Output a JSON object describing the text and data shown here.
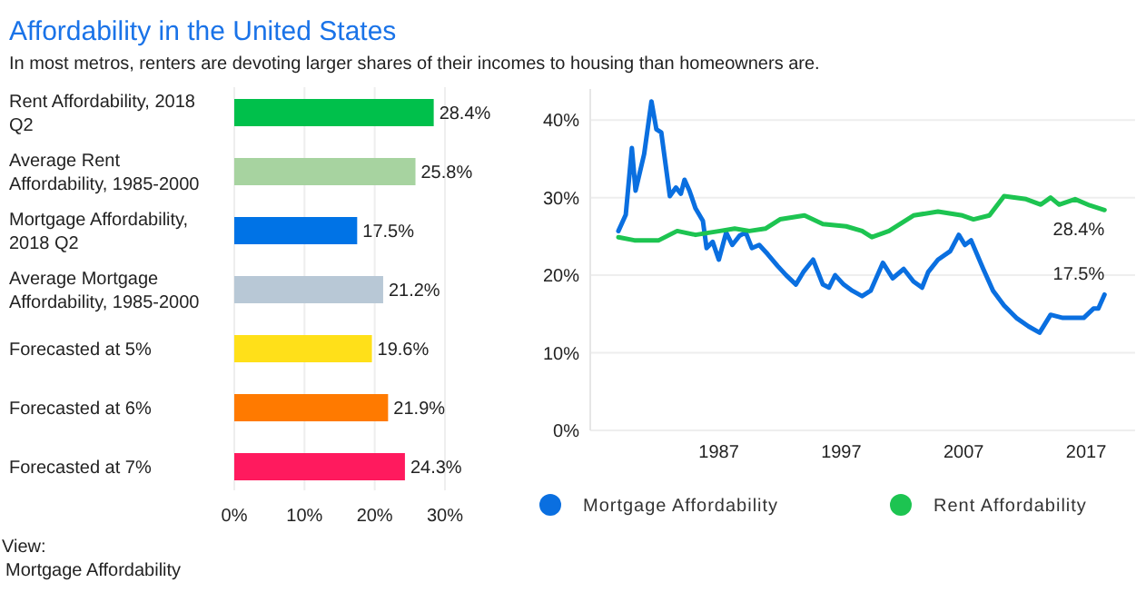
{
  "chart_data": [
    {
      "type": "bar",
      "title": "Affordability in the United States",
      "subtitle": "In most metros, renters are devoting larger shares of their incomes to housing than homeowners are.",
      "orientation": "horizontal",
      "categories": [
        "Rent Affordability, 2018 Q2",
        "Average Rent Affordability, 1985-2000",
        "Mortgage Affordability, 2018 Q2",
        "Average Mortgage Affordability, 1985-2000",
        "Forecasted at 5%",
        "Forecasted at 6%",
        "Forecasted at 7%"
      ],
      "values": [
        28.4,
        25.8,
        17.5,
        21.2,
        19.6,
        21.9,
        24.3
      ],
      "colors": [
        "#00c04b",
        "#a7d3a0",
        "#0073e6",
        "#b8c8d6",
        "#ffe019",
        "#ff7a00",
        "#ff1a5e"
      ],
      "value_labels": [
        "28.4%",
        "25.8%",
        "17.5%",
        "21.2%",
        "19.6%",
        "21.9%",
        "24.3%"
      ],
      "xlim": [
        0,
        30
      ],
      "xticks": [
        {
          "value": 0,
          "label": "0%"
        },
        {
          "value": 10,
          "label": "10%"
        },
        {
          "value": 20,
          "label": "20%"
        },
        {
          "value": 30,
          "label": "30%"
        }
      ],
      "grid": "x",
      "annotations": [
        "View:",
        "Mortgage Affordability"
      ]
    },
    {
      "type": "line",
      "legend": "bottom",
      "grid": "y",
      "xlim": [
        1976.5,
        2021
      ],
      "xticks": [
        1987,
        1997,
        2007,
        2017
      ],
      "ylim": [
        0,
        44
      ],
      "yticks": [
        {
          "value": 0,
          "label": "0%"
        },
        {
          "value": 10,
          "label": "10%"
        },
        {
          "value": 20,
          "label": "20%"
        },
        {
          "value": 30,
          "label": "30%"
        },
        {
          "value": 40,
          "label": "40%"
        }
      ],
      "series": [
        {
          "name": "Mortgage Affordability",
          "color": "#0a6fe0",
          "x": [
            1978.8,
            1979.4,
            1979.9,
            1980.2,
            1980.9,
            1981.5,
            1981.9,
            1982.3,
            1983.0,
            1983.5,
            1983.9,
            1984.2,
            1984.6,
            1985.1,
            1985.7,
            1986.0,
            1986.5,
            1987.0,
            1987.6,
            1988.1,
            1988.7,
            1989.2,
            1989.7,
            1990.3,
            1991.0,
            1991.8,
            1992.5,
            1993.3,
            1993.9,
            1994.7,
            1995.5,
            1996.0,
            1996.5,
            1997.2,
            1997.9,
            1998.7,
            1999.4,
            2000.4,
            2001.2,
            2002.1,
            2002.9,
            2003.6,
            2004.1,
            2004.9,
            2005.9,
            2006.6,
            2007.1,
            2007.6,
            2008.6,
            2009.4,
            2010.3,
            2011.3,
            2012.3,
            2013.2,
            2014.1,
            2015.1,
            2016.1,
            2016.8,
            2017.6,
            2018.0,
            2018.5
          ],
          "values": [
            25.7,
            27.8,
            36.4,
            30.9,
            35.6,
            42.4,
            38.8,
            38.4,
            30.2,
            31.3,
            30.5,
            32.3,
            30.9,
            28.6,
            27.0,
            23.5,
            24.3,
            22.0,
            25.5,
            23.9,
            25.1,
            25.5,
            23.5,
            23.9,
            22.7,
            21.2,
            20.0,
            18.8,
            20.4,
            22.0,
            18.8,
            18.4,
            20.0,
            18.8,
            18.0,
            17.3,
            18.0,
            21.6,
            19.6,
            20.8,
            19.2,
            18.4,
            20.4,
            22.0,
            23.1,
            25.2,
            23.9,
            24.5,
            20.8,
            18.0,
            16.1,
            14.5,
            13.4,
            12.6,
            14.9,
            14.5,
            14.5,
            14.5,
            15.7,
            15.7,
            17.5
          ]
        },
        {
          "name": "Rent Affordability",
          "color": "#1dc451",
          "x": [
            1978.8,
            1980.1,
            1982.1,
            1983.6,
            1985.1,
            1987.1,
            1988.3,
            1989.5,
            1990.8,
            1992.0,
            1994.0,
            1995.5,
            1997.4,
            1998.7,
            1999.5,
            2000.9,
            2002.9,
            2004.9,
            2006.9,
            2007.8,
            2009.1,
            2010.3,
            2012.1,
            2013.3,
            2014.1,
            2014.8,
            2016.1,
            2017.3,
            2018.5
          ],
          "values": [
            24.9,
            24.5,
            24.5,
            25.7,
            25.2,
            25.7,
            26.0,
            25.7,
            26.0,
            27.2,
            27.7,
            26.6,
            26.3,
            25.7,
            24.9,
            25.7,
            27.7,
            28.2,
            27.7,
            27.2,
            27.7,
            30.2,
            29.8,
            29.1,
            30.0,
            29.1,
            29.8,
            29.0,
            28.4
          ]
        }
      ],
      "annotations": [
        {
          "text": "28.4%",
          "x": 2018.5,
          "y": 28.4
        },
        {
          "text": "17.5%",
          "x": 2018.5,
          "y": 17.5
        }
      ]
    }
  ]
}
